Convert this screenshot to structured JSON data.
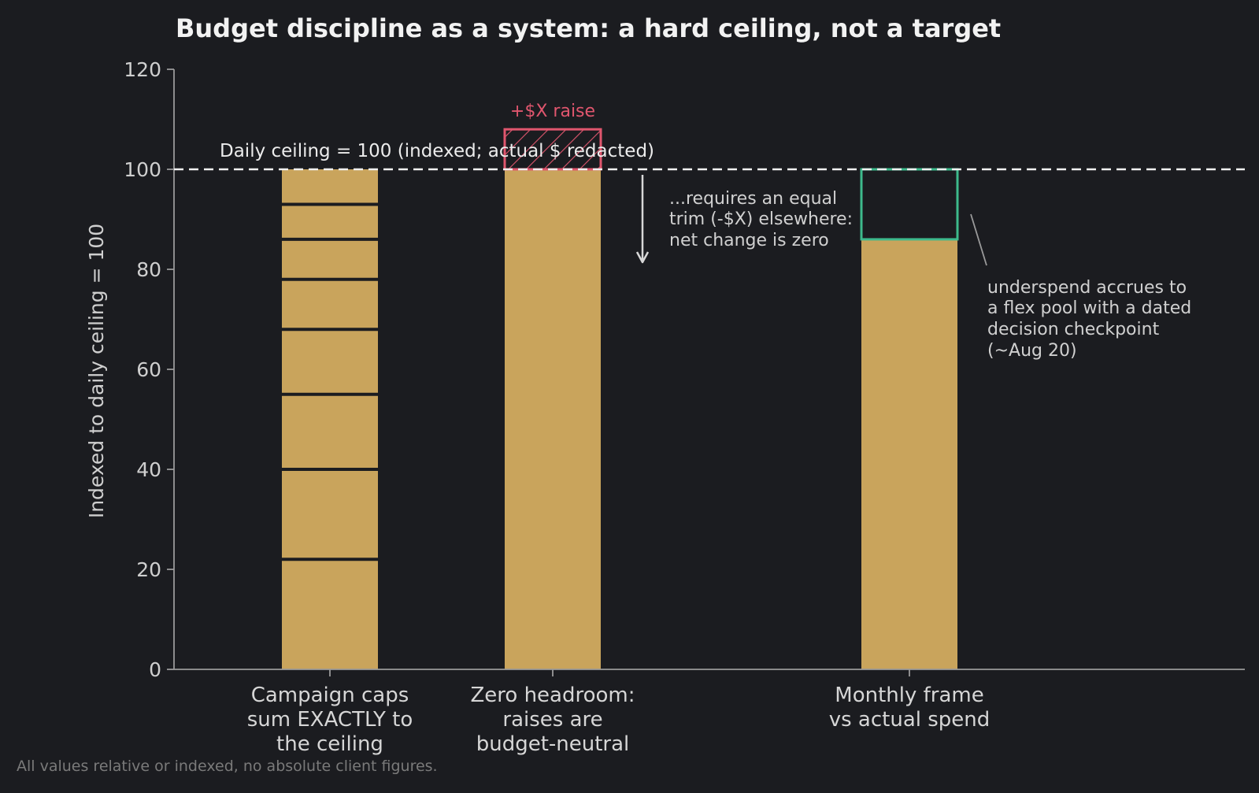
{
  "chart_data": {
    "type": "bar",
    "title": "Budget discipline as a system: a hard ceiling, not a target",
    "ylabel": "Indexed to daily ceiling = 100",
    "xlabel": "",
    "ylim": [
      0,
      120
    ],
    "yticks": [
      0,
      20,
      40,
      60,
      80,
      100,
      120
    ],
    "grid": false,
    "categories": [
      [
        "Campaign caps",
        "sum EXACTLY to",
        "the ceiling"
      ],
      [
        "Zero headroom:",
        "raises are",
        "budget-neutral"
      ],
      [
        "Monthly frame",
        "vs actual spend"
      ]
    ],
    "bars": [
      {
        "value": 100,
        "segments": [
          22,
          18,
          15,
          13,
          10,
          8,
          7,
          7
        ]
      },
      {
        "value": 100,
        "raise_to": 108
      },
      {
        "value": 86,
        "frame_top": 100
      }
    ],
    "ceiling": {
      "value": 100,
      "label": "Daily ceiling = 100 (indexed; actual $ redacted)"
    },
    "annotations": {
      "raise_label": "+$X raise",
      "trim_note": [
        "...requires an equal",
        "trim (-$X) elsewhere:",
        "net change is zero"
      ],
      "underspend_note": [
        "underspend accrues to",
        "a flex pool with a dated",
        "decision checkpoint",
        "(~Aug 20)"
      ]
    },
    "footnote": "All values relative or indexed, no absolute client figures.",
    "colors": {
      "bar": "#c9a45c",
      "raise": "#e0566e",
      "frame": "#3dba8c",
      "background": "#1b1c20",
      "axis": "#9a9a9a",
      "ceiling_line": "#f0f0f0",
      "segment_divider": "#1b1c20"
    }
  }
}
